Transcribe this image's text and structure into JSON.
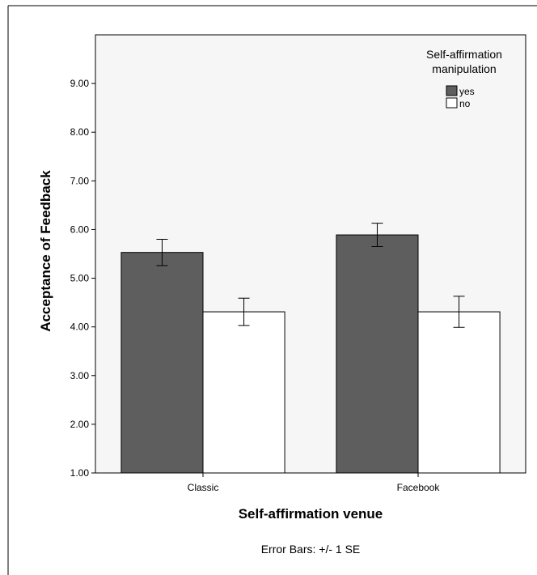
{
  "chart_data": {
    "type": "bar",
    "categories": [
      "Classic",
      "Facebook"
    ],
    "series": [
      {
        "name": "yes",
        "values": [
          5.53,
          5.89
        ],
        "se": [
          0.27,
          0.24
        ],
        "color": "#5e5e5e"
      },
      {
        "name": "no",
        "values": [
          4.31,
          4.31
        ],
        "se": [
          0.28,
          0.32
        ],
        "color": "#ffffff"
      }
    ],
    "xlabel": "Self-affirmation venue",
    "ylabel": "Acceptance of Feedback",
    "ylim": [
      1.0,
      10.0
    ],
    "yticks": [
      "1.00",
      "2.00",
      "3.00",
      "4.00",
      "5.00",
      "6.00",
      "7.00",
      "8.00",
      "9.00"
    ],
    "legend": {
      "title": "Self-affirmation manipulation",
      "placement": "top-right"
    },
    "note": "Error Bars: +/- 1 SE",
    "plot_background": "#f6f6f6",
    "grid": false
  }
}
